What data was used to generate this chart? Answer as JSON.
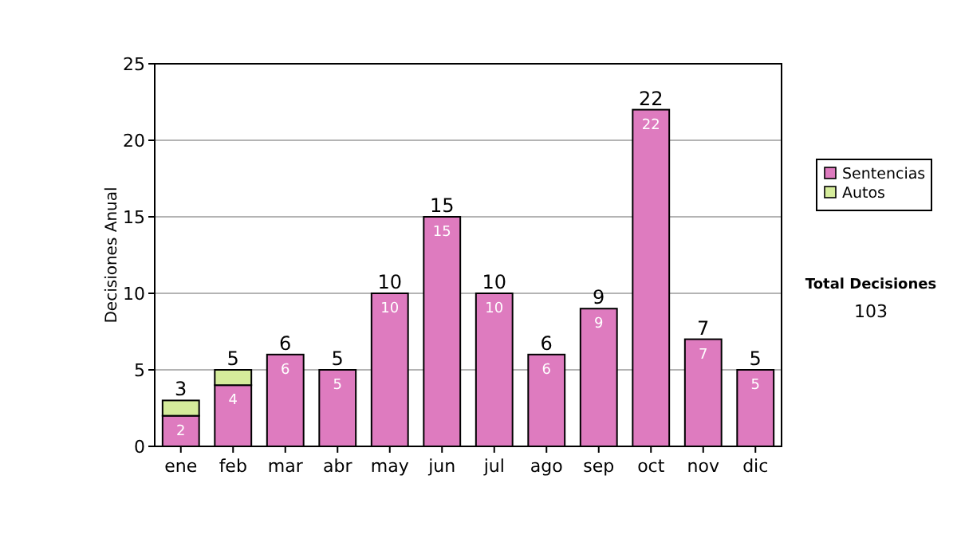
{
  "chart_data": {
    "type": "bar",
    "stacked": true,
    "ylabel": "Decisiones Anual",
    "categories": [
      "ene",
      "feb",
      "mar",
      "abr",
      "may",
      "jun",
      "jul",
      "ago",
      "sep",
      "oct",
      "nov",
      "dic"
    ],
    "series": [
      {
        "name": "Sentencias",
        "color": "#de7bbf",
        "values": [
          2,
          4,
          6,
          5,
          10,
          15,
          10,
          6,
          9,
          22,
          7,
          5
        ],
        "value_labels": [
          "2",
          "4",
          "6",
          "5",
          "10",
          "15",
          "10",
          "6",
          "9",
          "22",
          "7",
          "5"
        ]
      },
      {
        "name": "Autos",
        "color": "#d5ec9b",
        "values": [
          1,
          1,
          0,
          0,
          0,
          0,
          0,
          0,
          0,
          0,
          0,
          0
        ],
        "value_labels": [
          null,
          null,
          null,
          null,
          null,
          null,
          null,
          null,
          null,
          null,
          null,
          null
        ]
      }
    ],
    "totals": [
      "3",
      "5",
      "6",
      "5",
      "10",
      "15",
      "10",
      "6",
      "9",
      "22",
      "7",
      "5"
    ],
    "ylim": [
      0,
      25
    ],
    "yticks": [
      0,
      5,
      10,
      15,
      20,
      25
    ],
    "grid": "y",
    "legend": "right",
    "annotations": [
      "Total Decisiones",
      "103"
    ]
  }
}
